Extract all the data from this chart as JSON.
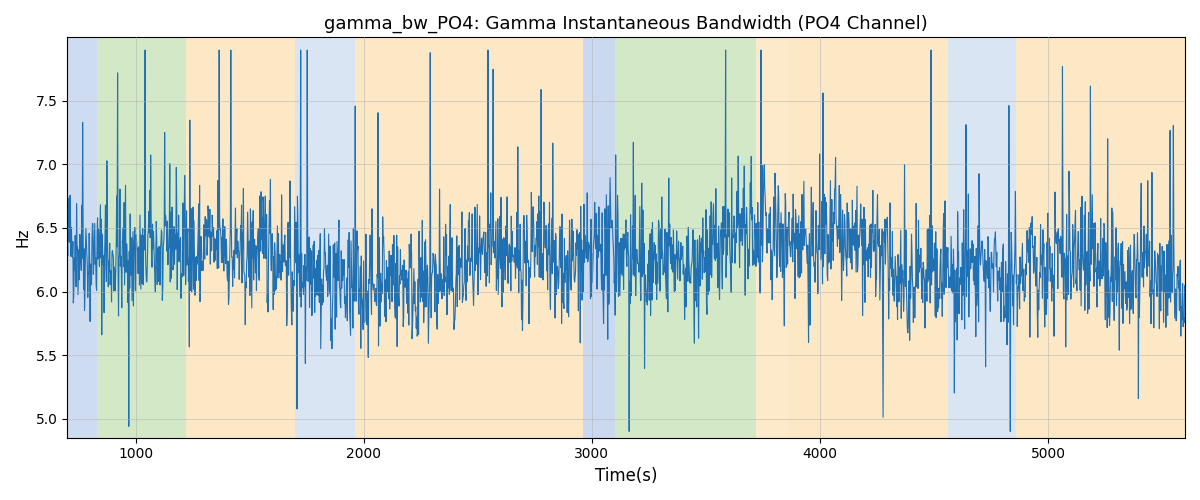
{
  "title": "gamma_bw_PO4: Gamma Instantaneous Bandwidth (PO4 Channel)",
  "xlabel": "Time(s)",
  "ylabel": "Hz",
  "xlim": [
    700,
    5600
  ],
  "ylim": [
    4.85,
    8.0
  ],
  "yticks": [
    5.0,
    5.5,
    6.0,
    6.5,
    7.0,
    7.5
  ],
  "xticks": [
    1000,
    2000,
    3000,
    4000,
    5000
  ],
  "line_color": "#2070b4",
  "line_width": 0.8,
  "bg_bands": [
    {
      "xmin": 700,
      "xmax": 830,
      "color": "#aec6e8",
      "alpha": 0.6
    },
    {
      "xmin": 830,
      "xmax": 1220,
      "color": "#b5d9a0",
      "alpha": 0.6
    },
    {
      "xmin": 1220,
      "xmax": 1700,
      "color": "#fdd9a0",
      "alpha": 0.6
    },
    {
      "xmin": 1700,
      "xmax": 1960,
      "color": "#aec6e8",
      "alpha": 0.45
    },
    {
      "xmin": 1960,
      "xmax": 2960,
      "color": "#fdd9a0",
      "alpha": 0.6
    },
    {
      "xmin": 2960,
      "xmax": 3100,
      "color": "#aec6e8",
      "alpha": 0.65
    },
    {
      "xmin": 3100,
      "xmax": 3720,
      "color": "#b5d9a0",
      "alpha": 0.6
    },
    {
      "xmin": 3720,
      "xmax": 3860,
      "color": "#fdd9a0",
      "alpha": 0.55
    },
    {
      "xmin": 3860,
      "xmax": 4560,
      "color": "#fdd9a0",
      "alpha": 0.6
    },
    {
      "xmin": 4560,
      "xmax": 4860,
      "color": "#aec6e8",
      "alpha": 0.45
    },
    {
      "xmin": 4860,
      "xmax": 5600,
      "color": "#fdd9a0",
      "alpha": 0.6
    }
  ],
  "seed": 42,
  "n_points": 2400,
  "t_start": 700,
  "t_end": 5600,
  "mean_val": 6.25,
  "figsize": [
    12,
    5
  ],
  "dpi": 100,
  "grid_color": "#b0b0b0",
  "grid_alpha": 0.5,
  "grid_linewidth": 0.7
}
